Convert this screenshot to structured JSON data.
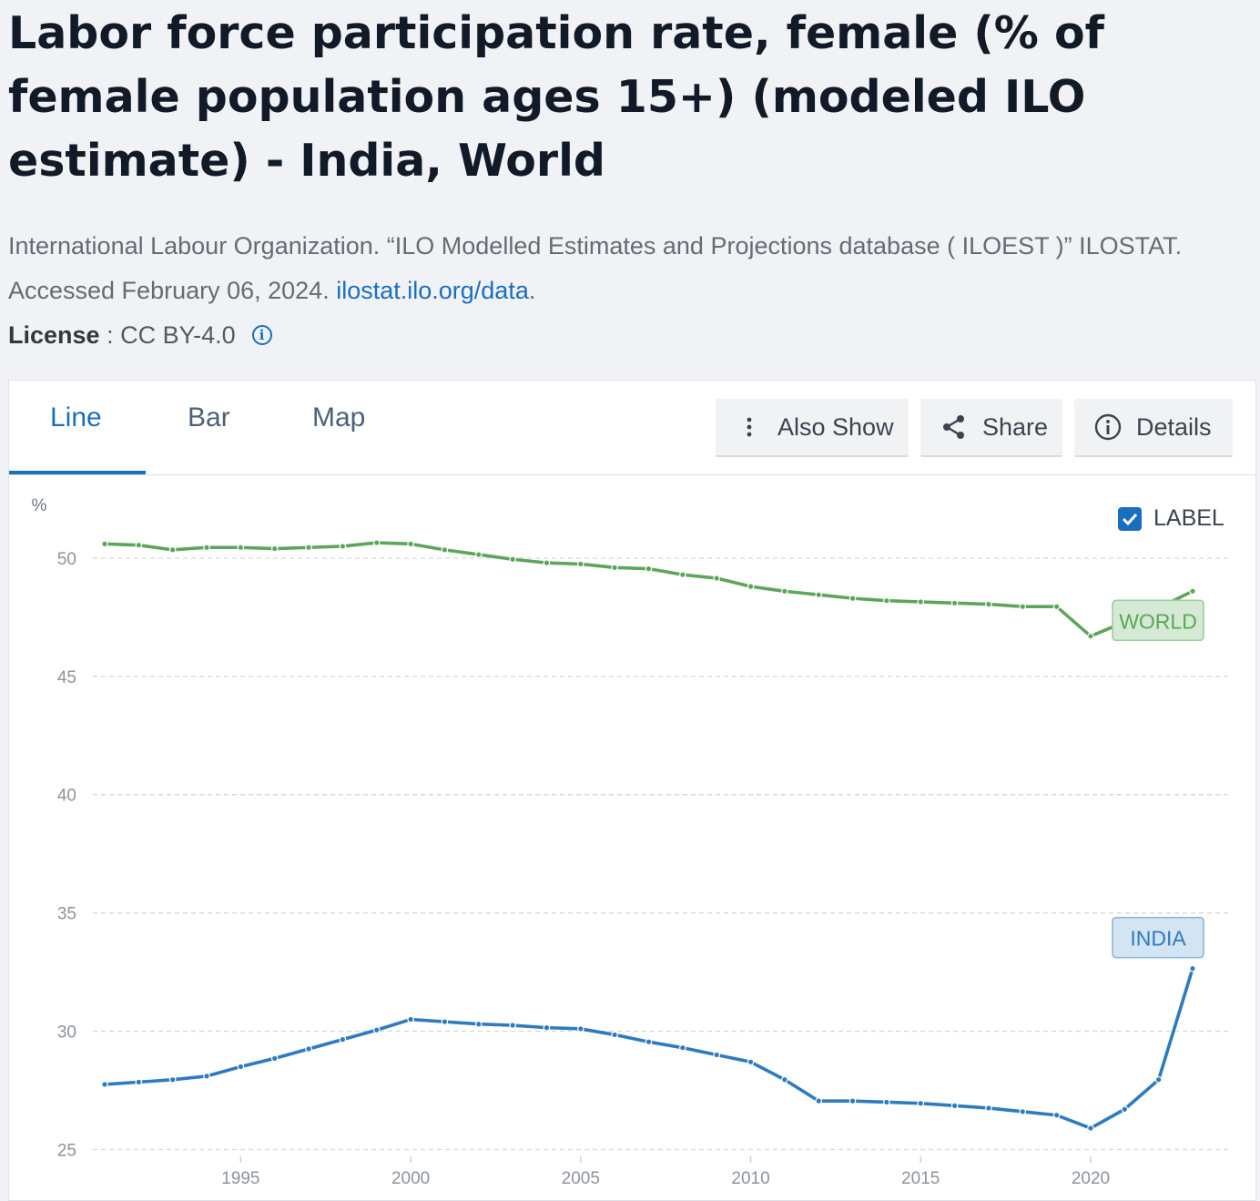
{
  "title": "Labor force participation rate, female (% of female population ages 15+) (modeled ILO estimate) - India, World",
  "source": {
    "text": "International Labour Organization. “ILO Modelled Estimates and Projections database ( ILOEST )” ILOSTAT. Accessed February 06, 2024.",
    "link": "ilostat.ilo.org/data",
    "end": "."
  },
  "license": {
    "label": "License",
    "separator": " : ",
    "value": "CC BY-4.0"
  },
  "tabs": [
    {
      "label": "Line",
      "active": true
    },
    {
      "label": "Bar",
      "active": false
    },
    {
      "label": "Map",
      "active": false
    }
  ],
  "buttons": {
    "also_show": "Also Show",
    "share": "Share",
    "details": "Details"
  },
  "label_toggle": {
    "label": "LABEL",
    "checked": true
  },
  "colors": {
    "accent": "#1a6ec0",
    "world": "#5da55a",
    "india": "#2e7bbf"
  },
  "chart_data": {
    "type": "line",
    "ylabel": "%",
    "xlabel": "",
    "xlim": [
      1991,
      2023
    ],
    "ylim": [
      24,
      52
    ],
    "grid": true,
    "y_ticks": [
      25,
      30,
      35,
      40,
      45,
      50
    ],
    "x_ticks": [
      1995,
      2000,
      2005,
      2010,
      2015,
      2020
    ],
    "x": [
      1991,
      1992,
      1993,
      1994,
      1995,
      1996,
      1997,
      1998,
      1999,
      2000,
      2001,
      2002,
      2003,
      2004,
      2005,
      2006,
      2007,
      2008,
      2009,
      2010,
      2011,
      2012,
      2013,
      2014,
      2015,
      2016,
      2017,
      2018,
      2019,
      2020,
      2021,
      2022,
      2023
    ],
    "series": [
      {
        "name": "WORLD",
        "color": "#5da55a",
        "values": [
          50.6,
          50.55,
          50.35,
          50.45,
          50.45,
          50.4,
          50.45,
          50.5,
          50.65,
          50.6,
          50.35,
          50.15,
          49.95,
          49.8,
          49.75,
          49.6,
          49.55,
          49.3,
          49.15,
          48.8,
          48.6,
          48.45,
          48.3,
          48.2,
          48.15,
          48.1,
          48.05,
          47.95,
          47.95,
          46.7,
          47.3,
          47.9,
          48.6
        ]
      },
      {
        "name": "INDIA",
        "color": "#2e7bbf",
        "values": [
          27.75,
          27.85,
          27.95,
          28.1,
          28.5,
          28.85,
          29.25,
          29.65,
          30.05,
          30.5,
          30.4,
          30.3,
          30.25,
          30.15,
          30.1,
          29.85,
          29.55,
          29.3,
          29.0,
          28.7,
          27.95,
          27.05,
          27.05,
          27.0,
          26.95,
          26.85,
          26.75,
          26.6,
          26.45,
          25.9,
          26.7,
          27.95,
          32.65
        ]
      }
    ]
  }
}
